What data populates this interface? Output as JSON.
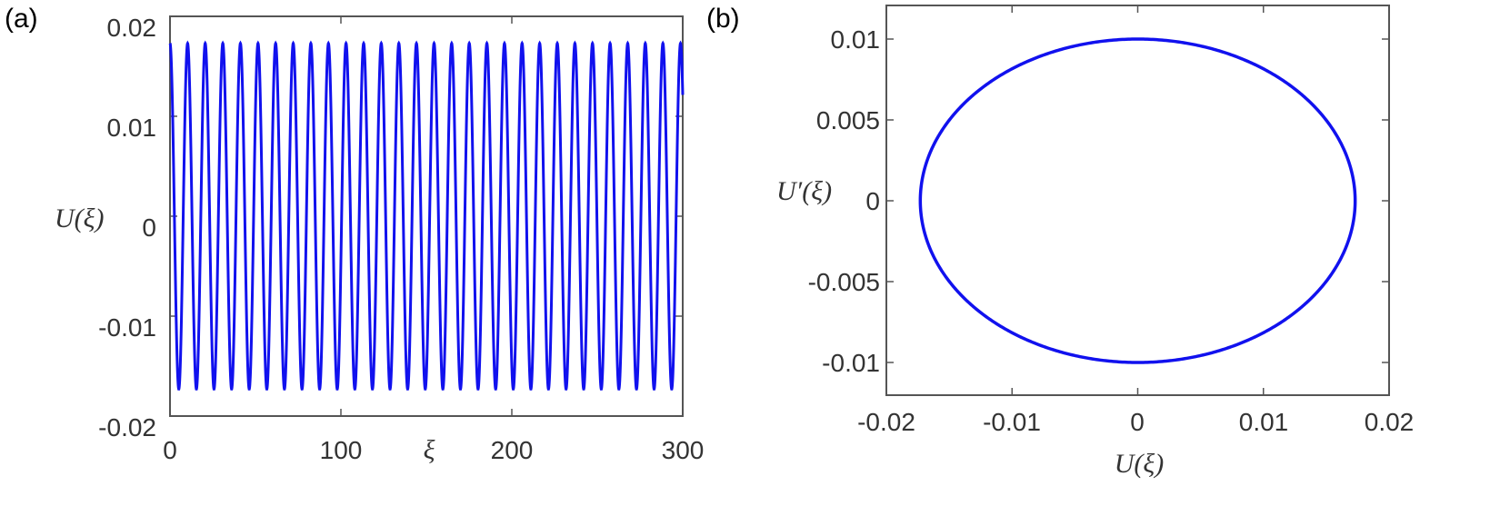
{
  "chart_data": [
    {
      "type": "line",
      "panel_label": "(a)",
      "xlabel": "ξ",
      "ylabel": "U(ξ)",
      "xlim": [
        0,
        300
      ],
      "ylim": [
        -0.02,
        0.02
      ],
      "x_ticks": [
        "0",
        "100",
        "200",
        "300"
      ],
      "y_ticks": [
        "0.02",
        "0.01",
        "0",
        "-0.01",
        "-0.02"
      ],
      "series": [
        {
          "amplitude": 0.0173,
          "period": 10.3,
          "x_range": [
            0,
            300
          ],
          "color": "#1111ee"
        }
      ]
    },
    {
      "type": "line",
      "panel_label": "(b)",
      "xlabel": "U(ξ)",
      "ylabel": "U′(ξ)",
      "xlim": [
        -0.02,
        0.02
      ],
      "ylim": [
        -0.012,
        0.012
      ],
      "x_ticks": [
        "-0.02",
        "-0.01",
        "0",
        "0.01",
        "0.02"
      ],
      "y_ticks": [
        "0.01",
        "0.005",
        "0",
        "-0.005",
        "-0.01"
      ],
      "series": [
        {
          "shape": "ellipse",
          "x_semi_axis": 0.0173,
          "y_semi_axis": 0.01,
          "center": [
            0,
            0
          ],
          "color": "#1111ee"
        }
      ]
    }
  ]
}
